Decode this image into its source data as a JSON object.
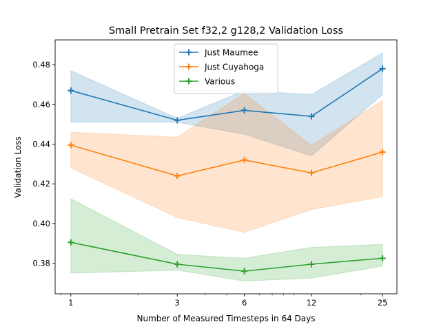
{
  "chart_data": {
    "type": "line",
    "title": "Small Pretrain Set f32,2 g128,2 Validation Loss",
    "xlabel": "Number of Measured Timesteps in 64 Days",
    "ylabel": "Validation Loss",
    "x_scale": "log",
    "x": [
      1,
      3,
      6,
      12,
      25
    ],
    "x_tick_labels": [
      "1",
      "3",
      "6",
      "12",
      "25"
    ],
    "xlim": [
      0.85,
      29.0
    ],
    "ylim": [
      0.3646,
      0.4925
    ],
    "y_ticks": [
      0.38,
      0.4,
      0.42,
      0.44,
      0.46,
      0.48
    ],
    "y_tick_labels": [
      "0.38",
      "0.40",
      "0.42",
      "0.44",
      "0.46",
      "0.48"
    ],
    "grid": false,
    "legend_position": "top-center",
    "series": [
      {
        "name": "Just Maumee",
        "color": "#1f77b4",
        "marker": "plus",
        "values": [
          0.467,
          0.452,
          0.457,
          0.454,
          0.478
        ],
        "band_low": [
          0.451,
          0.451,
          0.445,
          0.434,
          0.465
        ],
        "band_high": [
          0.477,
          0.453,
          0.467,
          0.465,
          0.486
        ]
      },
      {
        "name": "Just Cuyahoga",
        "color": "#ff7f0e",
        "marker": "plus",
        "values": [
          0.4395,
          0.424,
          0.432,
          0.4255,
          0.436
        ],
        "band_low": [
          0.428,
          0.403,
          0.3955,
          0.407,
          0.4135
        ],
        "band_high": [
          0.446,
          0.4435,
          0.4655,
          0.4395,
          0.462
        ]
      },
      {
        "name": "Various",
        "color": "#2ca02c",
        "marker": "plus",
        "values": [
          0.3905,
          0.3795,
          0.376,
          0.3795,
          0.3825
        ],
        "band_low": [
          0.375,
          0.3765,
          0.371,
          0.3725,
          0.3785
        ],
        "band_high": [
          0.4125,
          0.3845,
          0.3825,
          0.388,
          0.3895
        ]
      }
    ]
  }
}
